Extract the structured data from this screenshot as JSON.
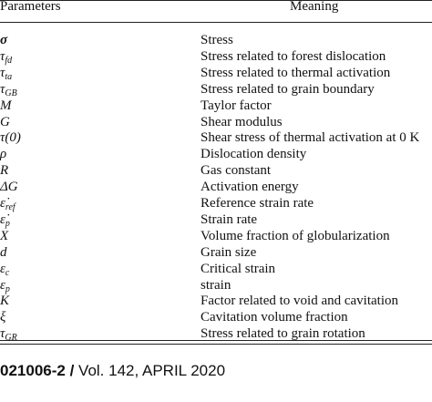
{
  "table": {
    "header": [
      "Parameters",
      "Meaning"
    ],
    "rows": [
      {
        "symbol": "σ",
        "sub": null,
        "meaning": "Stress"
      },
      {
        "symbol": "τ",
        "sub": "fd",
        "meaning": "Stress related to forest dislocation"
      },
      {
        "symbol": "τ",
        "sub": "ta",
        "meaning": "Stress related to thermal activation"
      },
      {
        "symbol": "τ",
        "sub": "GB",
        "meaning": "Stress related to grain boundary"
      },
      {
        "symbol": "M",
        "sub": null,
        "meaning": "Taylor factor"
      },
      {
        "symbol": "G",
        "sub": null,
        "meaning": "Shear modulus"
      },
      {
        "symbol": "τ(0)",
        "sub": null,
        "meaning": "Shear stress of thermal activation at 0 K"
      },
      {
        "symbol": "ρ",
        "sub": null,
        "meaning": "Dislocation density"
      },
      {
        "symbol": "R",
        "sub": null,
        "meaning": "Gas constant"
      },
      {
        "symbol": "ΔG",
        "sub": null,
        "meaning": "Activation energy"
      },
      {
        "symbol": "ε̇",
        "sub": "ref",
        "meaning": "Reference strain rate"
      },
      {
        "symbol": "ε̇",
        "sub": "p",
        "meaning": "Strain rate"
      },
      {
        "symbol": "X",
        "sub": null,
        "meaning": "Volume fraction of globularization"
      },
      {
        "symbol": "d",
        "sub": null,
        "meaning": "Grain size"
      },
      {
        "symbol": "ε",
        "sub": "c",
        "meaning": "Critical strain"
      },
      {
        "symbol": "ε",
        "sub": "p",
        "meaning": "strain"
      },
      {
        "symbol": "K",
        "sub": null,
        "meaning": "Factor related to void and cavitation"
      },
      {
        "symbol": "ξ",
        "sub": null,
        "meaning": "Cavitation volume fraction"
      },
      {
        "symbol": "τ",
        "sub": "GR",
        "meaning": "Stress related to grain rotation"
      }
    ]
  },
  "footer": {
    "page": "021006-2",
    "separator": "/",
    "journal": "Vol. 142, APRIL 2020"
  }
}
